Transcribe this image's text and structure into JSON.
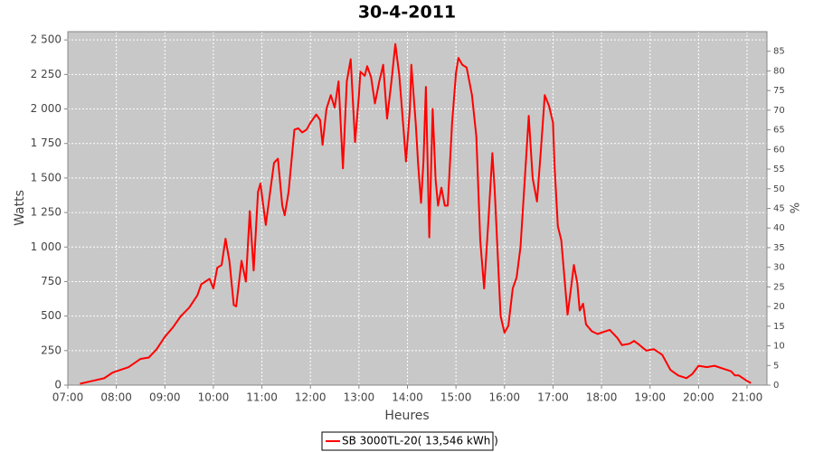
{
  "chart_data": {
    "type": "line",
    "title": "30-4-2011",
    "x_label": "Heures",
    "y_label": "Watts",
    "y2_label": "%",
    "x": [
      7.25,
      7.5,
      7.75,
      7.92,
      8.0,
      8.25,
      8.5,
      8.67,
      8.83,
      9.0,
      9.17,
      9.33,
      9.5,
      9.67,
      9.75,
      9.92,
      10.0,
      10.08,
      10.17,
      10.25,
      10.33,
      10.42,
      10.47,
      10.58,
      10.67,
      10.75,
      10.83,
      10.92,
      10.97,
      11.08,
      11.17,
      11.25,
      11.33,
      11.42,
      11.47,
      11.55,
      11.67,
      11.75,
      11.83,
      11.92,
      12.0,
      12.12,
      12.2,
      12.25,
      12.33,
      12.42,
      12.5,
      12.58,
      12.67,
      12.75,
      12.83,
      12.92,
      13.0,
      13.03,
      13.12,
      13.17,
      13.25,
      13.33,
      13.42,
      13.5,
      13.58,
      13.67,
      13.75,
      13.83,
      13.92,
      13.97,
      14.05,
      14.08,
      14.17,
      14.22,
      14.28,
      14.33,
      14.38,
      14.45,
      14.52,
      14.58,
      14.63,
      14.7,
      14.77,
      14.83,
      14.92,
      15.0,
      15.05,
      15.13,
      15.22,
      15.33,
      15.42,
      15.5,
      15.58,
      15.67,
      15.75,
      15.8,
      15.92,
      16.0,
      16.08,
      16.17,
      16.25,
      16.33,
      16.42,
      16.5,
      16.58,
      16.67,
      16.75,
      16.83,
      16.92,
      17.0,
      17.03,
      17.1,
      17.17,
      17.25,
      17.3,
      17.37,
      17.43,
      17.5,
      17.55,
      17.62,
      17.68,
      17.8,
      17.92,
      18.0,
      18.17,
      18.33,
      18.42,
      18.58,
      18.67,
      18.75,
      18.92,
      19.08,
      19.25,
      19.42,
      19.58,
      19.75,
      19.87,
      20.0,
      20.17,
      20.33,
      20.5,
      20.67,
      20.75,
      20.83,
      21.0,
      21.08
    ],
    "series": [
      {
        "name": "SB 3000TL-20( 13,546 kWh )",
        "color": "#ff0000",
        "values": [
          10,
          30,
          50,
          90,
          100,
          130,
          190,
          200,
          260,
          350,
          420,
          500,
          560,
          650,
          730,
          770,
          700,
          850,
          870,
          1060,
          900,
          580,
          570,
          900,
          750,
          1260,
          830,
          1400,
          1460,
          1160,
          1400,
          1610,
          1640,
          1300,
          1230,
          1400,
          1850,
          1860,
          1830,
          1850,
          1900,
          1960,
          1920,
          1740,
          2000,
          2100,
          2010,
          2200,
          1570,
          2200,
          2360,
          1760,
          2100,
          2270,
          2240,
          2310,
          2230,
          2040,
          2200,
          2320,
          1930,
          2200,
          2470,
          2250,
          1850,
          1620,
          2000,
          2320,
          1900,
          1600,
          1320,
          1620,
          2160,
          1070,
          2000,
          1490,
          1300,
          1430,
          1300,
          1300,
          1900,
          2260,
          2370,
          2320,
          2300,
          2100,
          1800,
          1050,
          700,
          1200,
          1680,
          1400,
          500,
          380,
          430,
          700,
          780,
          1000,
          1500,
          1950,
          1500,
          1330,
          1700,
          2100,
          2020,
          1900,
          1600,
          1150,
          1050,
          720,
          510,
          700,
          870,
          740,
          540,
          590,
          440,
          390,
          370,
          380,
          400,
          340,
          290,
          300,
          320,
          300,
          250,
          260,
          220,
          110,
          70,
          50,
          80,
          140,
          130,
          140,
          120,
          100,
          70,
          70,
          30,
          15
        ]
      }
    ],
    "xlim": [
      7,
      21.41
    ],
    "xticks": [
      {
        "value": 7,
        "label": "07:00"
      },
      {
        "value": 8,
        "label": "08:00"
      },
      {
        "value": 9,
        "label": "09:00"
      },
      {
        "value": 10,
        "label": "10:00"
      },
      {
        "value": 11,
        "label": "11:00"
      },
      {
        "value": 12,
        "label": "12:00"
      },
      {
        "value": 13,
        "label": "13:00"
      },
      {
        "value": 14,
        "label": "14:00"
      },
      {
        "value": 15,
        "label": "15:00"
      },
      {
        "value": 16,
        "label": "16:00"
      },
      {
        "value": 17,
        "label": "17:00"
      },
      {
        "value": 18,
        "label": "18:00"
      },
      {
        "value": 19,
        "label": "19:00"
      },
      {
        "value": 20,
        "label": "20:00"
      },
      {
        "value": 21,
        "label": "21:00"
      }
    ],
    "ylim": [
      0,
      2560
    ],
    "yticks": [
      0,
      250,
      500,
      750,
      {
        "value": 1000,
        "label": "1 000"
      },
      {
        "value": 1250,
        "label": "1 250"
      },
      {
        "value": 1500,
        "label": "1 500"
      },
      {
        "value": 1750,
        "label": "1 750"
      },
      {
        "value": 2000,
        "label": "2 000"
      },
      {
        "value": 2250,
        "label": "2 250"
      },
      {
        "value": 2500,
        "label": "2 500"
      }
    ],
    "y2lim": [
      0,
      90
    ],
    "y2ticks": [
      0,
      5,
      10,
      15,
      20,
      25,
      30,
      35,
      40,
      45,
      50,
      55,
      60,
      65,
      70,
      75,
      80,
      85
    ],
    "grid": true
  }
}
